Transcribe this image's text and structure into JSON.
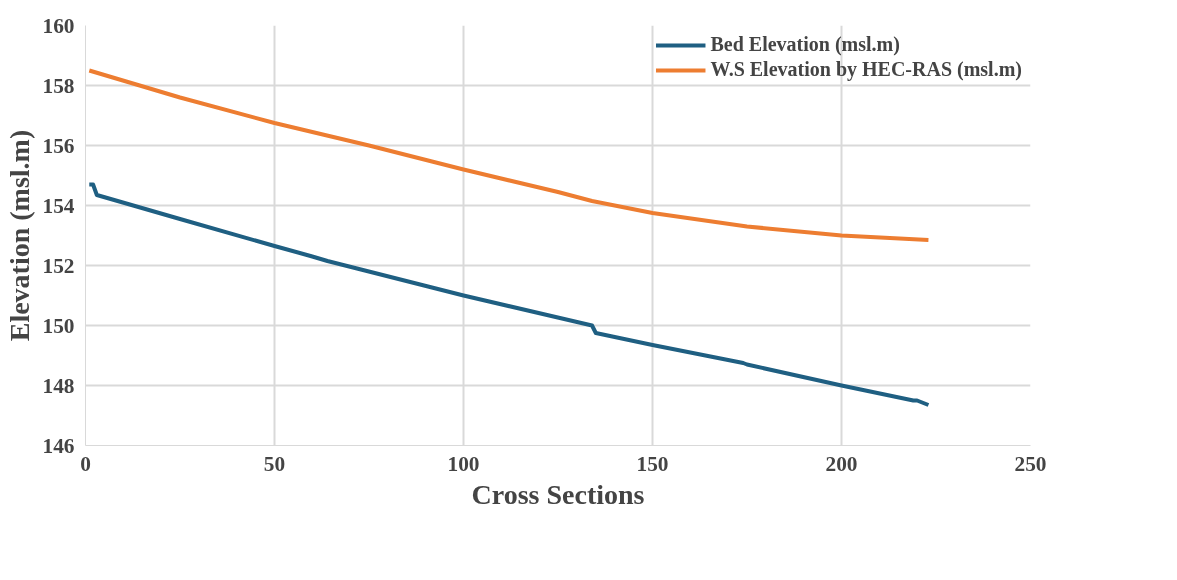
{
  "chart_data": {
    "type": "line",
    "xlabel": "Cross Sections",
    "ylabel": "Elevation (msl.m)",
    "xlim": [
      0,
      250
    ],
    "xticks": [
      0,
      50,
      100,
      150,
      200,
      250
    ],
    "ylim": [
      146,
      160
    ],
    "yticks": [
      146,
      148,
      150,
      152,
      154,
      156,
      158,
      160
    ],
    "grid": true,
    "legend": "top right",
    "line_style": "solid",
    "series": [
      {
        "name": "Bed Elevation (msl.m)",
        "color": "#1f5f82",
        "x": [
          1,
          2,
          3,
          25,
          50,
          60,
          64,
          100,
          134,
          135,
          150,
          174,
          175,
          200,
          219,
          220,
          223
        ],
        "values": [
          154.7,
          154.7,
          154.35,
          153.55,
          152.65,
          152.3,
          152.15,
          151.0,
          150.0,
          149.75,
          149.35,
          148.75,
          148.7,
          148.0,
          147.5,
          147.5,
          147.35
        ]
      },
      {
        "name": "W.S Elevation by HEC-RAS (msl.m)",
        "color": "#ed7d31",
        "x": [
          1,
          25,
          50,
          75,
          100,
          125,
          134,
          150,
          175,
          200,
          223
        ],
        "values": [
          158.5,
          157.6,
          156.75,
          156.0,
          155.2,
          154.45,
          154.15,
          153.75,
          153.3,
          153.0,
          152.85
        ]
      }
    ]
  }
}
